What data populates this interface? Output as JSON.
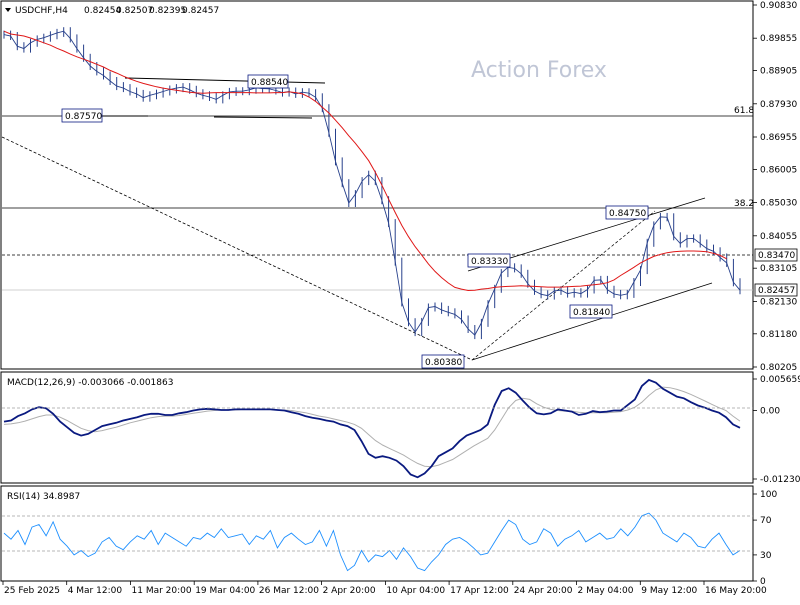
{
  "chart_data": [
    {
      "id": "price",
      "type": "line",
      "title": "USDCHF,H4",
      "ohlc_readout": [
        "0.82454",
        "0.82507",
        "0.82395",
        "0.82457"
      ],
      "watermark": "Action Forex",
      "x_tick_labels": [
        "25 Feb 2025",
        "4 Mar 12:00",
        "11 Mar 20:00",
        "19 Mar 04:00",
        "26 Mar 12:00",
        "2 Apr 20:00",
        "10 Apr 04:00",
        "17 Apr 12:00",
        "24 Apr 20:00",
        "2 May 04:00",
        "9 May 12:00",
        "16 May 20:00"
      ],
      "y_tick_labels": [
        "0.90830",
        "0.89855",
        "0.88905",
        "0.87930",
        "0.86955",
        "0.86005",
        "0.85030",
        "0.84055",
        "0.83105",
        "0.82130",
        "0.81180",
        "0.80205"
      ],
      "ylim": [
        0.80205,
        0.9083
      ],
      "grid": false,
      "series": [
        {
          "values": [
            0.8996,
            0.8992,
            0.8962,
            0.8955,
            0.8972,
            0.8982,
            0.8987,
            0.8994,
            0.9001,
            0.9006,
            0.8985,
            0.8955,
            0.8928,
            0.8904,
            0.8888,
            0.8876,
            0.886,
            0.8845,
            0.8839,
            0.8829,
            0.8822,
            0.8811,
            0.8818,
            0.8823,
            0.8829,
            0.8835,
            0.8839,
            0.8842,
            0.8834,
            0.8824,
            0.8818,
            0.8813,
            0.8806,
            0.8818,
            0.8828,
            0.883,
            0.883,
            0.8834,
            0.884,
            0.8838,
            0.8837,
            0.8832,
            0.8826,
            0.8829,
            0.8822,
            0.8827,
            0.8824,
            0.8812,
            0.878,
            0.8708,
            0.8624,
            0.856,
            0.8502,
            0.8528,
            0.8566,
            0.8585,
            0.8566,
            0.851,
            0.8443,
            0.833,
            0.821,
            0.8152,
            0.8123,
            0.8153,
            0.8195,
            0.8198,
            0.8188,
            0.8181,
            0.8175,
            0.816,
            0.8132,
            0.8114,
            0.815,
            0.8205,
            0.825,
            0.8296,
            0.8313,
            0.831,
            0.8294,
            0.8265,
            0.8244,
            0.8234,
            0.823,
            0.8244,
            0.8246,
            0.8236,
            0.824,
            0.8236,
            0.8248,
            0.8275,
            0.8276,
            0.8247,
            0.8235,
            0.8231,
            0.8235,
            0.827,
            0.8305,
            0.8385,
            0.8436,
            0.8461,
            0.846,
            0.8404,
            0.8383,
            0.8397,
            0.8398,
            0.8383,
            0.8368,
            0.836,
            0.8342,
            0.8326,
            0.8269,
            0.8246
          ],
          "moving_average": [
            0.9006,
            0.8998,
            0.8995,
            0.8992,
            0.8986,
            0.8979,
            0.8972,
            0.8965,
            0.8956,
            0.8948,
            0.8939,
            0.8931,
            0.8924,
            0.8917,
            0.8909,
            0.8901,
            0.8891,
            0.8883,
            0.8874,
            0.8866,
            0.8859,
            0.8853,
            0.8848,
            0.8843,
            0.8839,
            0.8836,
            0.8833,
            0.883,
            0.8827,
            0.8825,
            0.8824,
            0.8825,
            0.8826,
            0.8826,
            0.8826,
            0.8826,
            0.8826,
            0.8826,
            0.8825,
            0.8825,
            0.8825,
            0.8826,
            0.8826,
            0.8828,
            0.8826,
            0.8822,
            0.8813,
            0.88,
            0.8783,
            0.8766,
            0.8745,
            0.8723,
            0.8699,
            0.8677,
            0.8652,
            0.8626,
            0.8592,
            0.8554,
            0.8513,
            0.8474,
            0.8436,
            0.8403,
            0.8374,
            0.8349,
            0.8323,
            0.8301,
            0.8283,
            0.8267,
            0.8254,
            0.8249,
            0.8245,
            0.8246,
            0.8249,
            0.8251,
            0.8254,
            0.8256,
            0.8257,
            0.8258,
            0.8259,
            0.8258,
            0.8257,
            0.8256,
            0.8255,
            0.8255,
            0.8255,
            0.8256,
            0.8257,
            0.8258,
            0.826,
            0.8262,
            0.8264,
            0.8268,
            0.8276,
            0.8289,
            0.8301,
            0.8313,
            0.8326,
            0.8336,
            0.8345,
            0.8351,
            0.8356,
            0.8359,
            0.836,
            0.8361,
            0.8361,
            0.836,
            0.8359,
            0.8354,
            0.8348,
            0.8338
          ]
        }
      ],
      "price_labels": [
        "0.88540",
        "0.87570",
        "0.80380",
        "0.83330",
        "0.81840",
        "0.84750"
      ],
      "fib_labels": [
        "61.8",
        "38.2"
      ],
      "marked_levels": {
        "level_line": "0.83470",
        "current_price": "0.82457"
      }
    },
    {
      "id": "macd",
      "type": "line",
      "title": "MACD(12,26,9) -0.003066 -0.001863",
      "y_tick_labels": [
        "0.005659",
        "0.00",
        "-0.012301"
      ],
      "ylim": [
        -0.012301,
        0.005659
      ],
      "series": [
        {
          "values": [
            -0.002,
            -0.0018,
            -0.001,
            -0.0005,
            0.0002,
            0.0006,
            0.0004,
            -0.0006,
            -0.002,
            -0.003,
            -0.004,
            -0.0045,
            -0.0042,
            -0.0035,
            -0.0028,
            -0.0025,
            -0.0022,
            -0.0018,
            -0.0015,
            -0.0012,
            -0.0008,
            -0.0006,
            -0.0006,
            -0.0008,
            -0.0008,
            -0.0005,
            -0.0003,
            0.0,
            0.0002,
            0.0003,
            0.0002,
            0.0001,
            0.0001,
            0.0002,
            0.0002,
            0.0002,
            0.0002,
            0.0002,
            0.0002,
            0.0001,
            0.0,
            -0.0003,
            -0.0006,
            -0.001,
            -0.0013,
            -0.0015,
            -0.0018,
            -0.002,
            -0.0025,
            -0.0028,
            -0.0035,
            -0.0055,
            -0.0078,
            -0.0085,
            -0.0082,
            -0.0085,
            -0.009,
            -0.01,
            -0.0115,
            -0.012,
            -0.0113,
            -0.01,
            -0.0082,
            -0.0075,
            -0.0068,
            -0.0055,
            -0.0045,
            -0.004,
            -0.0035,
            -0.0025,
            0.001,
            0.0035,
            0.004,
            0.0032,
            0.0018,
            0.0005,
            -0.0005,
            -0.0007,
            -0.0005,
            0.0002,
            0.0,
            -0.0002,
            -0.0008,
            -0.0006,
            -0.0001,
            -0.0003,
            -0.0002,
            0.0,
            0.0,
            0.001,
            0.002,
            0.0044,
            0.0055,
            0.005,
            0.0039,
            0.0032,
            0.0025,
            0.0022,
            0.0015,
            0.0009,
            0.0005,
            0.0,
            -0.0004,
            -0.0012,
            -0.0025,
            -0.0031
          ]
        },
        {
          "values": [
            -0.0025,
            -0.0024,
            -0.0022,
            -0.0019,
            -0.0015,
            -0.0011,
            -0.0008,
            -0.0008,
            -0.0012,
            -0.0018,
            -0.0025,
            -0.0032,
            -0.0036,
            -0.0038,
            -0.0036,
            -0.0033,
            -0.003,
            -0.0026,
            -0.0022,
            -0.0019,
            -0.0016,
            -0.0013,
            -0.0011,
            -0.001,
            -0.001,
            -0.0009,
            -0.0007,
            -0.0005,
            -0.0003,
            -0.0001,
            0.0,
            0.0001,
            0.0001,
            0.0001,
            0.0002,
            0.0002,
            0.0002,
            0.0002,
            0.0002,
            0.0001,
            0.0001,
            0.0,
            -0.0002,
            -0.0004,
            -0.0007,
            -0.001,
            -0.0012,
            -0.0015,
            -0.0018,
            -0.0021,
            -0.0025,
            -0.0032,
            -0.0043,
            -0.0054,
            -0.0062,
            -0.0068,
            -0.0074,
            -0.008,
            -0.0088,
            -0.0095,
            -0.01,
            -0.0101,
            -0.0098,
            -0.0093,
            -0.0088,
            -0.008,
            -0.0072,
            -0.0064,
            -0.0057,
            -0.005,
            -0.0035,
            -0.0015,
            0.0005,
            0.0018,
            0.0022,
            0.002,
            0.0012,
            0.0006,
            0.0002,
            0.0,
            -0.0001,
            -0.0001,
            -0.0003,
            -0.0004,
            -0.0004,
            -0.0004,
            -0.0004,
            -0.0003,
            -0.0002,
            0.0001,
            0.0006,
            0.0015,
            0.0027,
            0.0037,
            0.0042,
            0.0041,
            0.0038,
            0.0034,
            0.0029,
            0.0023,
            0.0017,
            0.0011,
            0.0005,
            0.0,
            -0.001,
            -0.0019
          ]
        }
      ]
    },
    {
      "id": "rsi",
      "type": "line",
      "title": "RSI(14) 34.8987",
      "y_tick_labels": [
        "100",
        "70",
        "30",
        "0"
      ],
      "ylim": [
        0,
        100
      ],
      "levels": [
        70,
        30
      ],
      "series": [
        {
          "values": [
            55,
            48,
            58,
            42,
            62,
            65,
            52,
            68,
            48,
            40,
            30,
            35,
            28,
            32,
            45,
            50,
            40,
            36,
            45,
            52,
            48,
            58,
            42,
            55,
            50,
            45,
            40,
            50,
            48,
            55,
            50,
            60,
            50,
            52,
            54,
            42,
            52,
            48,
            58,
            38,
            50,
            55,
            48,
            42,
            45,
            58,
            40,
            58,
            30,
            12,
            18,
            35,
            22,
            30,
            28,
            35,
            25,
            38,
            28,
            15,
            12,
            22,
            30,
            42,
            48,
            50,
            45,
            38,
            30,
            32,
            45,
            58,
            70,
            65,
            48,
            42,
            45,
            60,
            55,
            40,
            48,
            52,
            58,
            45,
            50,
            55,
            48,
            50,
            60,
            52,
            62,
            75,
            78,
            70,
            55,
            50,
            45,
            55,
            50,
            40,
            38,
            48,
            55,
            42,
            30,
            35
          ]
        }
      ]
    }
  ]
}
